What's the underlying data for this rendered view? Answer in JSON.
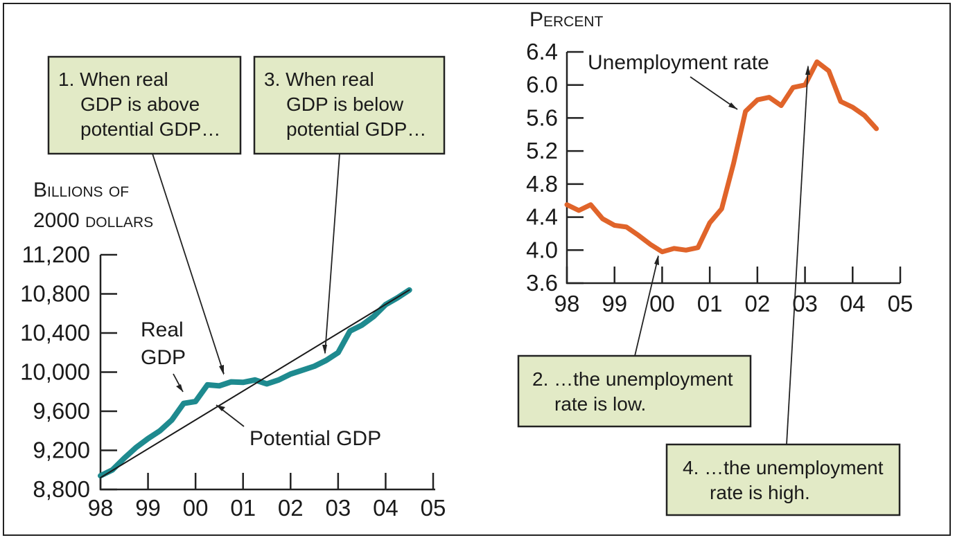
{
  "chart_data": [
    {
      "type": "line",
      "ylabel_line1": "Billions of",
      "ylabel_line2": "2000 dollars",
      "ylim": [
        8800,
        11200
      ],
      "y_ticks": [
        "8,800",
        "9,200",
        "9,600",
        "10,000",
        "10,400",
        "10,800",
        "11,200"
      ],
      "x_ticks": [
        "98",
        "99",
        "00",
        "01",
        "02",
        "03",
        "04",
        "05"
      ],
      "xlim": [
        1998,
        2005
      ],
      "series": [
        {
          "name": "Real GDP",
          "color": "#1e8a8f",
          "x": [
            1998.0,
            1998.25,
            1998.5,
            1998.75,
            1999.0,
            1999.25,
            1999.5,
            1999.75,
            2000.0,
            2000.25,
            2000.5,
            2000.75,
            2001.0,
            2001.25,
            2001.5,
            2001.75,
            2002.0,
            2002.25,
            2002.5,
            2002.75,
            2003.0,
            2003.25,
            2003.5,
            2003.75,
            2004.0,
            2004.25,
            2004.5
          ],
          "y": [
            8940,
            9000,
            9120,
            9230,
            9320,
            9400,
            9510,
            9680,
            9700,
            9870,
            9860,
            9900,
            9895,
            9920,
            9880,
            9920,
            9980,
            10020,
            10060,
            10120,
            10200,
            10420,
            10480,
            10570,
            10690,
            10760,
            10840
          ]
        },
        {
          "name": "Potential GDP",
          "color": "#1a1a1a",
          "x": [
            1998.0,
            2004.5
          ],
          "y": [
            8920,
            10840
          ]
        }
      ],
      "annotations": [
        "Real",
        "GDP",
        "Potential GDP"
      ]
    },
    {
      "type": "line",
      "ylabel": "Percent",
      "ylim": [
        3.6,
        6.4
      ],
      "y_ticks": [
        "3.6",
        "4.0",
        "4.4",
        "4.8",
        "5.2",
        "5.6",
        "6.0",
        "6.4"
      ],
      "x_ticks": [
        "98",
        "99",
        "00",
        "01",
        "02",
        "03",
        "04",
        "05"
      ],
      "xlim": [
        1998,
        2005
      ],
      "series": [
        {
          "name": "Unemployment rate",
          "color": "#e0642a",
          "x": [
            1998.0,
            1998.25,
            1998.5,
            1998.75,
            1999.0,
            1999.25,
            1999.5,
            1999.75,
            2000.0,
            2000.25,
            2000.5,
            2000.75,
            2001.0,
            2001.25,
            2001.5,
            2001.75,
            2002.0,
            2002.25,
            2002.5,
            2002.75,
            2003.0,
            2003.25,
            2003.5,
            2003.75,
            2004.0,
            2004.25,
            2004.5
          ],
          "y": [
            4.55,
            4.48,
            4.55,
            4.38,
            4.3,
            4.28,
            4.18,
            4.07,
            3.98,
            4.02,
            4.0,
            4.03,
            4.33,
            4.5,
            5.05,
            5.68,
            5.82,
            5.85,
            5.75,
            5.97,
            6.0,
            6.28,
            6.17,
            5.8,
            5.73,
            5.63,
            5.47
          ]
        }
      ],
      "annotations": [
        "Unemployment rate"
      ]
    }
  ],
  "callouts": {
    "c1": [
      "1. When real",
      "GDP is above",
      "potential GDP…"
    ],
    "c2": [
      "2. …the unemployment",
      "rate is low."
    ],
    "c3": [
      "3. When real",
      "GDP is below",
      "potential GDP…"
    ],
    "c4": [
      "4. …the unemployment",
      "rate is high."
    ]
  }
}
